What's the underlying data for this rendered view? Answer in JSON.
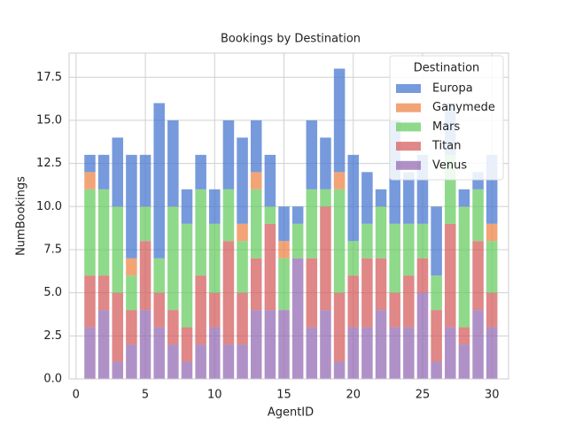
{
  "chart_data": {
    "type": "stacked_bar",
    "title": "Bookings by Destination",
    "x_label": "AgentID",
    "y_label": "NumBookings",
    "x": [
      1,
      2,
      3,
      4,
      5,
      6,
      7,
      8,
      9,
      10,
      11,
      12,
      13,
      14,
      15,
      16,
      17,
      18,
      19,
      20,
      21,
      22,
      23,
      24,
      25,
      26,
      27,
      28,
      29,
      30
    ],
    "series": [
      {
        "name": "Europa",
        "color": "#4878d0",
        "values": [
          1,
          2,
          4,
          6,
          3,
          9,
          5,
          2,
          2,
          2,
          4,
          5,
          3,
          3,
          2,
          1,
          4,
          3,
          6,
          5,
          3,
          1,
          6,
          3,
          4,
          4,
          3,
          1,
          1,
          4
        ]
      },
      {
        "name": "Ganymede",
        "color": "#ee854a",
        "values": [
          1,
          0,
          0,
          1,
          0,
          0,
          0,
          0,
          0,
          0,
          0,
          1,
          1,
          0,
          1,
          0,
          0,
          0,
          1,
          0,
          0,
          0,
          0,
          0,
          0,
          0,
          0,
          0,
          0,
          1
        ]
      },
      {
        "name": "Mars",
        "color": "#6acc64",
        "values": [
          5,
          5,
          5,
          2,
          2,
          2,
          6,
          6,
          5,
          4,
          3,
          3,
          4,
          1,
          3,
          2,
          4,
          1,
          6,
          2,
          2,
          3,
          4,
          3,
          2,
          2,
          4,
          7,
          3,
          3
        ]
      },
      {
        "name": "Titan",
        "color": "#d65f5f",
        "values": [
          3,
          2,
          4,
          2,
          4,
          2,
          2,
          2,
          4,
          2,
          6,
          3,
          3,
          5,
          0,
          0,
          4,
          6,
          4,
          3,
          4,
          3,
          2,
          3,
          2,
          3,
          6,
          1,
          4,
          2
        ]
      },
      {
        "name": "Venus",
        "color": "#956cb4",
        "values": [
          3,
          4,
          1,
          2,
          4,
          3,
          2,
          1,
          2,
          3,
          2,
          2,
          4,
          4,
          4,
          7,
          3,
          4,
          1,
          3,
          3,
          4,
          3,
          3,
          5,
          1,
          3,
          2,
          4,
          3
        ]
      }
    ],
    "legend_title": "Destination",
    "legend": "upper right",
    "grid": true,
    "xlim": [
      -0.5,
      31.2
    ],
    "xticks": [
      0,
      5,
      10,
      15,
      20,
      25,
      30
    ],
    "ylim": [
      0,
      18.9
    ],
    "yticks": [
      {
        "value": 0,
        "label": "0.0"
      },
      2.5,
      {
        "value": 5,
        "label": "5.0"
      },
      7.5,
      {
        "value": 10,
        "label": "10.0"
      },
      12.5,
      {
        "value": 15,
        "label": "15.0"
      },
      17.5
    ]
  }
}
